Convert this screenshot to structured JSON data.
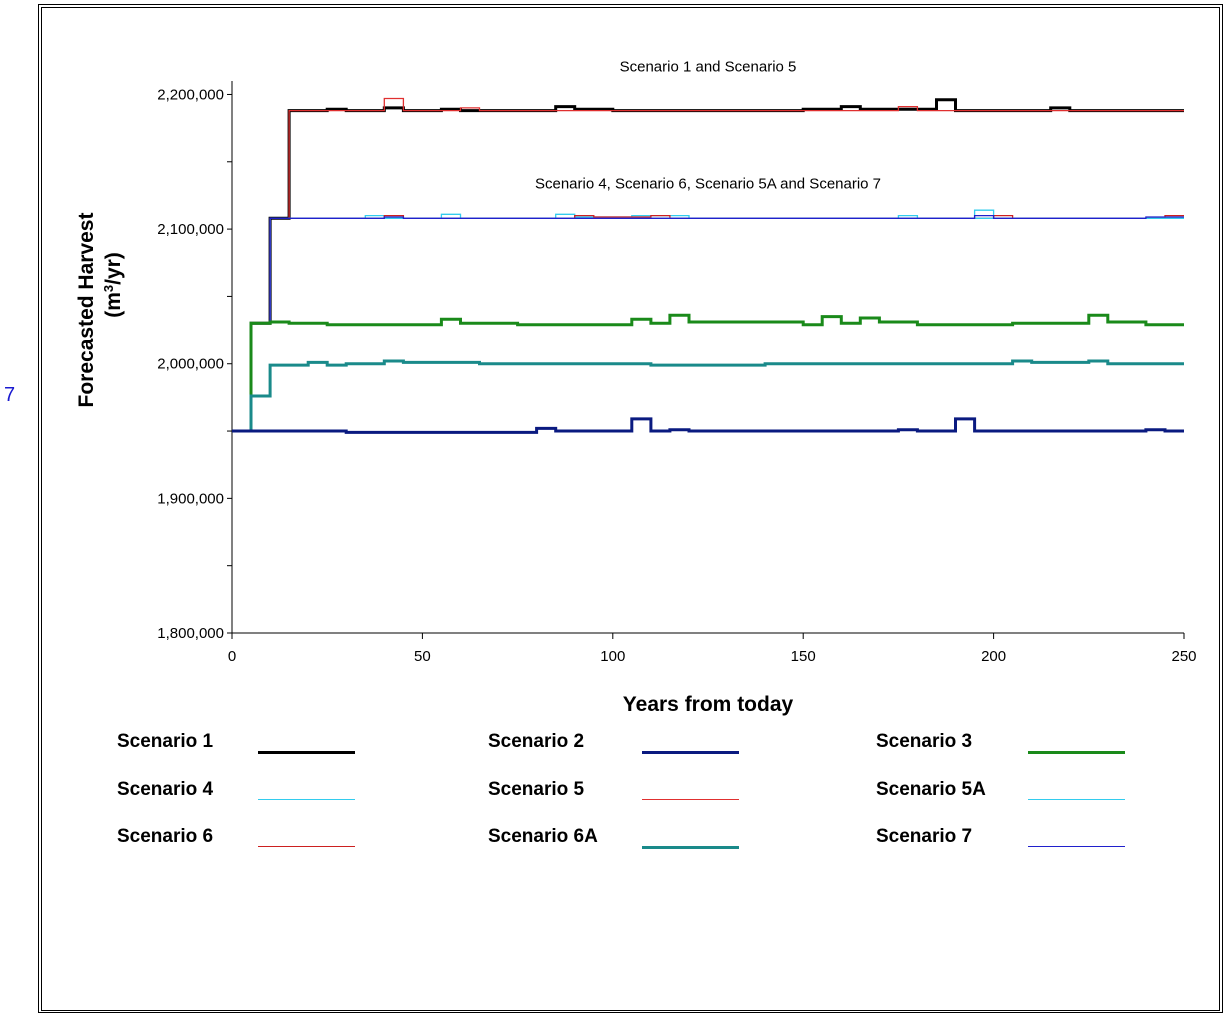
{
  "side_note": "7",
  "chart_data": {
    "type": "line",
    "xlabel": "Years from today",
    "ylabel_line1": "Forecasted Harvest",
    "ylabel_line2": "(m3/yr)",
    "ylabel_unit_prefix": "(m",
    "ylabel_unit_sup": "3",
    "ylabel_unit_suffix": "/yr)",
    "xlim": [
      0,
      250
    ],
    "ylim": [
      1800000,
      2210000
    ],
    "xticks": [
      0,
      50,
      100,
      150,
      200,
      250
    ],
    "xtick_labels": [
      "0",
      "50",
      "100",
      "150",
      "200",
      "250"
    ],
    "yticks": [
      1800000,
      1900000,
      2000000,
      2100000,
      2200000
    ],
    "ytick_labels": [
      "1,800,000",
      "1,900,000",
      "2,000,000",
      "2,100,000",
      "2,200,000"
    ],
    "grid": false,
    "annotations": [
      {
        "text": "Scenario 1 and Scenario 5",
        "x": 125,
        "y": 2214000
      },
      {
        "text": "Scenario 4, Scenario 6, Scenario 5A and Scenario 7",
        "x": 125,
        "y": 2127000
      }
    ],
    "series": [
      {
        "name": "Scenario 1",
        "color": "#000000",
        "width": 3,
        "steps": [
          [
            0,
            1950000
          ],
          [
            5,
            2030000
          ],
          [
            10,
            2108000
          ],
          [
            15,
            2188000
          ],
          [
            25,
            2189000
          ],
          [
            30,
            2188000
          ],
          [
            40,
            2190000
          ],
          [
            45,
            2188000
          ],
          [
            55,
            2189000
          ],
          [
            60,
            2188000
          ],
          [
            85,
            2191000
          ],
          [
            90,
            2189000
          ],
          [
            100,
            2188000
          ],
          [
            150,
            2189000
          ],
          [
            160,
            2191000
          ],
          [
            165,
            2189000
          ],
          [
            185,
            2196000
          ],
          [
            190,
            2188000
          ],
          [
            215,
            2190000
          ],
          [
            220,
            2188000
          ],
          [
            250,
            2188000
          ]
        ]
      },
      {
        "name": "Scenario 5",
        "color": "#e03030",
        "width": 1.3,
        "steps": [
          [
            0,
            1950000
          ],
          [
            5,
            2030000
          ],
          [
            10,
            2108000
          ],
          [
            15,
            2188000
          ],
          [
            40,
            2197000
          ],
          [
            45,
            2188000
          ],
          [
            60,
            2190000
          ],
          [
            65,
            2188000
          ],
          [
            175,
            2191000
          ],
          [
            180,
            2188000
          ],
          [
            250,
            2188000
          ]
        ]
      },
      {
        "name": "Scenario 4",
        "color": "#33ccee",
        "width": 1.3,
        "steps": [
          [
            0,
            1950000
          ],
          [
            5,
            2030000
          ],
          [
            10,
            2108000
          ],
          [
            35,
            2110000
          ],
          [
            40,
            2108000
          ],
          [
            55,
            2111000
          ],
          [
            60,
            2108000
          ],
          [
            85,
            2111000
          ],
          [
            90,
            2109000
          ],
          [
            105,
            2110000
          ],
          [
            120,
            2108000
          ],
          [
            175,
            2110000
          ],
          [
            180,
            2108000
          ],
          [
            195,
            2114000
          ],
          [
            200,
            2108000
          ],
          [
            250,
            2108000
          ]
        ]
      },
      {
        "name": "Scenario 6",
        "color": "#cc2020",
        "width": 1.3,
        "steps": [
          [
            0,
            1950000
          ],
          [
            5,
            2030000
          ],
          [
            10,
            2108000
          ],
          [
            40,
            2110000
          ],
          [
            45,
            2108000
          ],
          [
            90,
            2110000
          ],
          [
            95,
            2109000
          ],
          [
            110,
            2110000
          ],
          [
            115,
            2108000
          ],
          [
            200,
            2110000
          ],
          [
            205,
            2108000
          ],
          [
            245,
            2110000
          ],
          [
            250,
            2110000
          ]
        ]
      },
      {
        "name": "Scenario 5A",
        "color": "#33ccee",
        "width": 1.3,
        "steps": [
          [
            0,
            1950000
          ],
          [
            5,
            2030000
          ],
          [
            10,
            2108000
          ],
          [
            250,
            2108000
          ]
        ]
      },
      {
        "name": "Scenario 7",
        "color": "#2020cc",
        "width": 1.3,
        "steps": [
          [
            0,
            1950000
          ],
          [
            5,
            2030000
          ],
          [
            10,
            2108000
          ],
          [
            40,
            2109000
          ],
          [
            45,
            2108000
          ],
          [
            195,
            2110000
          ],
          [
            200,
            2108000
          ],
          [
            240,
            2109000
          ],
          [
            250,
            2109000
          ]
        ]
      },
      {
        "name": "Scenario 3",
        "color": "#1a8a1a",
        "width": 3,
        "steps": [
          [
            0,
            1950000
          ],
          [
            5,
            2030000
          ],
          [
            10,
            2031000
          ],
          [
            15,
            2030000
          ],
          [
            25,
            2029000
          ],
          [
            55,
            2033000
          ],
          [
            60,
            2030000
          ],
          [
            75,
            2029000
          ],
          [
            100,
            2029000
          ],
          [
            105,
            2033000
          ],
          [
            110,
            2030000
          ],
          [
            115,
            2036000
          ],
          [
            120,
            2031000
          ],
          [
            150,
            2029000
          ],
          [
            155,
            2035000
          ],
          [
            160,
            2030000
          ],
          [
            165,
            2034000
          ],
          [
            170,
            2031000
          ],
          [
            180,
            2029000
          ],
          [
            205,
            2030000
          ],
          [
            225,
            2036000
          ],
          [
            230,
            2031000
          ],
          [
            240,
            2029000
          ],
          [
            250,
            2029000
          ]
        ]
      },
      {
        "name": "Scenario 6A",
        "color": "#1a8a8a",
        "width": 3,
        "steps": [
          [
            0,
            1950000
          ],
          [
            5,
            1976000
          ],
          [
            10,
            1999000
          ],
          [
            20,
            2001000
          ],
          [
            25,
            1999000
          ],
          [
            30,
            2000000
          ],
          [
            40,
            2002000
          ],
          [
            45,
            2001000
          ],
          [
            65,
            2000000
          ],
          [
            110,
            1999000
          ],
          [
            140,
            2000000
          ],
          [
            200,
            2000000
          ],
          [
            205,
            2002000
          ],
          [
            210,
            2001000
          ],
          [
            225,
            2002000
          ],
          [
            230,
            2000000
          ],
          [
            250,
            2000000
          ]
        ]
      },
      {
        "name": "Scenario 2",
        "color": "#0a1a80",
        "width": 3,
        "steps": [
          [
            0,
            1950000
          ],
          [
            30,
            1949000
          ],
          [
            80,
            1952000
          ],
          [
            85,
            1950000
          ],
          [
            105,
            1959000
          ],
          [
            110,
            1950000
          ],
          [
            115,
            1951000
          ],
          [
            120,
            1950000
          ],
          [
            155,
            1950000
          ],
          [
            175,
            1951000
          ],
          [
            180,
            1950000
          ],
          [
            190,
            1959000
          ],
          [
            195,
            1950000
          ],
          [
            240,
            1951000
          ],
          [
            245,
            1950000
          ],
          [
            250,
            1950000
          ]
        ]
      }
    ]
  },
  "legend": [
    {
      "label": "Scenario 1",
      "color": "#000000",
      "width": 3
    },
    {
      "label": "Scenario 2",
      "color": "#0a1a80",
      "width": 3
    },
    {
      "label": "Scenario 3",
      "color": "#1a8a1a",
      "width": 3
    },
    {
      "label": "Scenario 4",
      "color": "#33ccee",
      "width": 1
    },
    {
      "label": "Scenario 5",
      "color": "#e03030",
      "width": 1
    },
    {
      "label": "Scenario 5A",
      "color": "#33ccee",
      "width": 1
    },
    {
      "label": "Scenario 6",
      "color": "#cc2020",
      "width": 1
    },
    {
      "label": "Scenario 6A",
      "color": "#1a8a8a",
      "width": 3
    },
    {
      "label": "Scenario 7",
      "color": "#2020cc",
      "width": 1
    }
  ]
}
